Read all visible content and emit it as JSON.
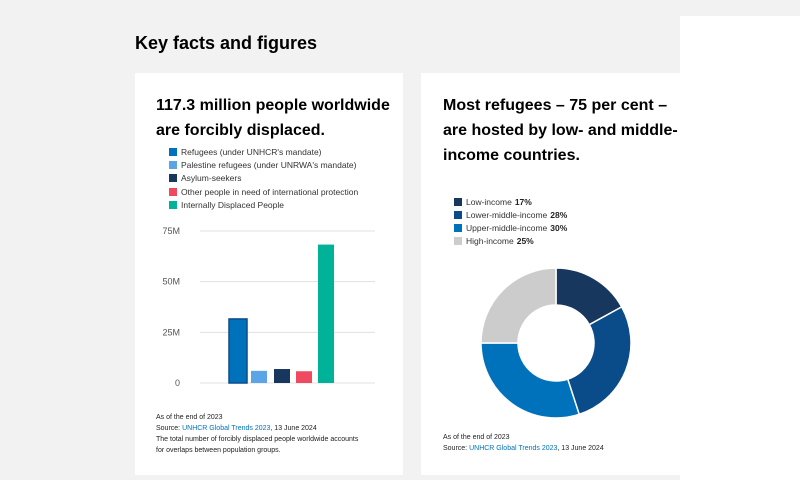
{
  "page": {
    "section_title": "Key facts and figures"
  },
  "left_card": {
    "heading_line1": "117.3 million people worldwide",
    "heading_line2": "are forcibly displaced.",
    "notes": {
      "as_of": "As of the end of 2023",
      "source_prefix": "Source: ",
      "source_link": "UNHCR Global Trends 2023",
      "source_suffix": ", 13 June 2024",
      "footnote_line1": "The total number of forcibly displaced people worldwide accounts",
      "footnote_line2": "for overlaps between population groups."
    }
  },
  "right_card": {
    "heading_line1": "Most refugees – 75 per cent –",
    "heading_line2": "are hosted by low- and middle-",
    "heading_line3": "income countries.",
    "notes": {
      "as_of": "As of the end of 2023",
      "source_prefix": "Source: ",
      "source_link": "UNHCR Global Trends 2023",
      "source_suffix": ", 13 June 2024"
    }
  },
  "chart_data": [
    {
      "type": "bar",
      "categories": [
        "Refugees (under UNHCR's mandate)",
        "Palestine refugees (under UNRWA's mandate)",
        "Asylum-seekers",
        "Other people in need of international protection",
        "Internally Displaced People"
      ],
      "values": [
        31.6,
        6.0,
        6.9,
        5.8,
        68.3
      ],
      "unit": "M",
      "colors": [
        "#0072bc",
        "#5ba4e5",
        "#18375f",
        "#ef4a60",
        "#00b398"
      ],
      "ylim": [
        0,
        75
      ],
      "yticks": [
        0,
        25,
        50,
        75
      ],
      "ytick_labels": [
        "0",
        "25M",
        "50M",
        "75M"
      ],
      "grid": true,
      "legend_position": "top"
    },
    {
      "type": "pie",
      "variant": "donut",
      "labels": [
        "Low-income",
        "Lower-middle-income",
        "Upper-middle-income",
        "High-income"
      ],
      "values": [
        17,
        28,
        30,
        25
      ],
      "value_labels": [
        "17%",
        "28%",
        "30%",
        "25%"
      ],
      "colors": [
        "#18375f",
        "#0a4c8a",
        "#0072bc",
        "#cccccc"
      ],
      "legend_position": "top-left"
    }
  ]
}
